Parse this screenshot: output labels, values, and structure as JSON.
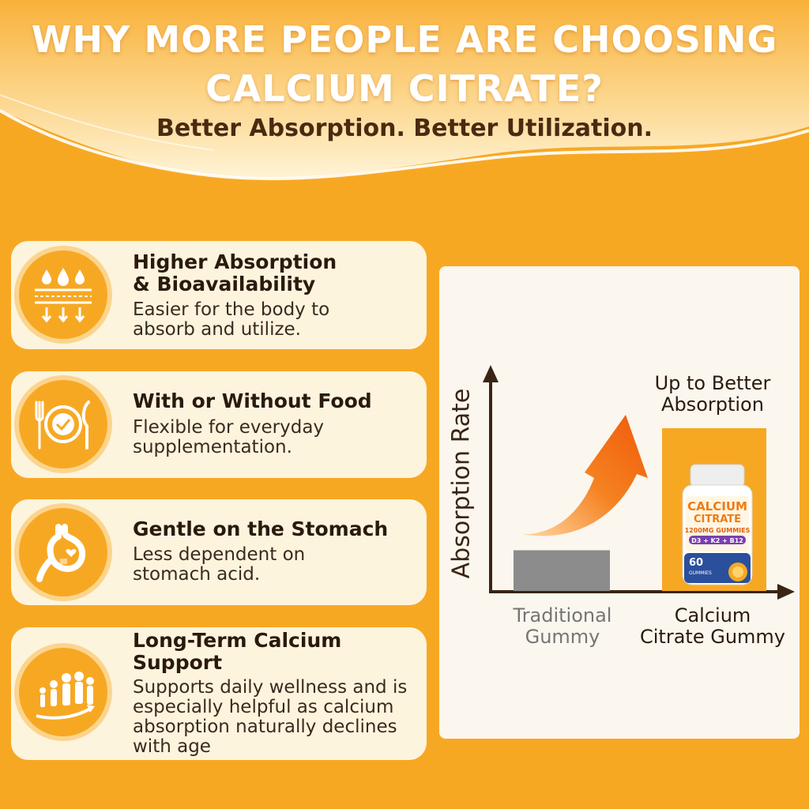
{
  "header": {
    "title_line1": "WHY MORE PEOPLE ARE CHOOSING",
    "title_line2": "CALCIUM CITRATE?",
    "subtitle": "Better Absorption. Better Utilization."
  },
  "benefits": [
    {
      "icon": "absorption-layers-icon",
      "title_line1": "Higher Absorption",
      "title_line2": "& Bioavailability",
      "desc_line1": "Easier for the body to",
      "desc_line2": "absorb and utilize."
    },
    {
      "icon": "plate-cutlery-icon",
      "title_line1": "With or Without Food",
      "desc_line1": "Flexible for everyday",
      "desc_line2": "supplementation."
    },
    {
      "icon": "stomach-heart-icon",
      "title_line1": "Gentle on the Stomach",
      "desc_line1": "Less dependent on",
      "desc_line2": "stomach acid."
    },
    {
      "icon": "people-growth-icon",
      "title_line1": "Long-Term Calcium",
      "title_line2": "Support",
      "desc_line1": "Supports daily wellness and is",
      "desc_line2": "especially helpful as calcium",
      "desc_line3": "absorption naturally declines",
      "desc_line4": "with age"
    }
  ],
  "chart_data": {
    "type": "bar",
    "ylabel": "Absorption Rate",
    "categories": [
      "Traditional Gummy",
      "Calcium Citrate Gummy"
    ],
    "categories_lines": [
      [
        "Traditional",
        "Gummy"
      ],
      [
        "Calcium",
        "Citrate Gummy"
      ]
    ],
    "values": [
      0.25,
      1.0
    ],
    "annotation_line1": "Up to Better",
    "annotation_line2": "Absorption",
    "colors": {
      "traditional": "#8c8c8c",
      "citrate": "#f7a823",
      "arrow": "#f06a10"
    }
  },
  "product": {
    "line1": "CALCIUM",
    "line2": "CITRATE",
    "line3": "1200MG GUMMIES",
    "line4": "D3 + K2 + B12",
    "count": "60",
    "count_unit": "GUMMIES"
  },
  "colors": {
    "background": "#f7a823",
    "card": "#fdf4de",
    "text_dark": "#2a1a0e"
  }
}
